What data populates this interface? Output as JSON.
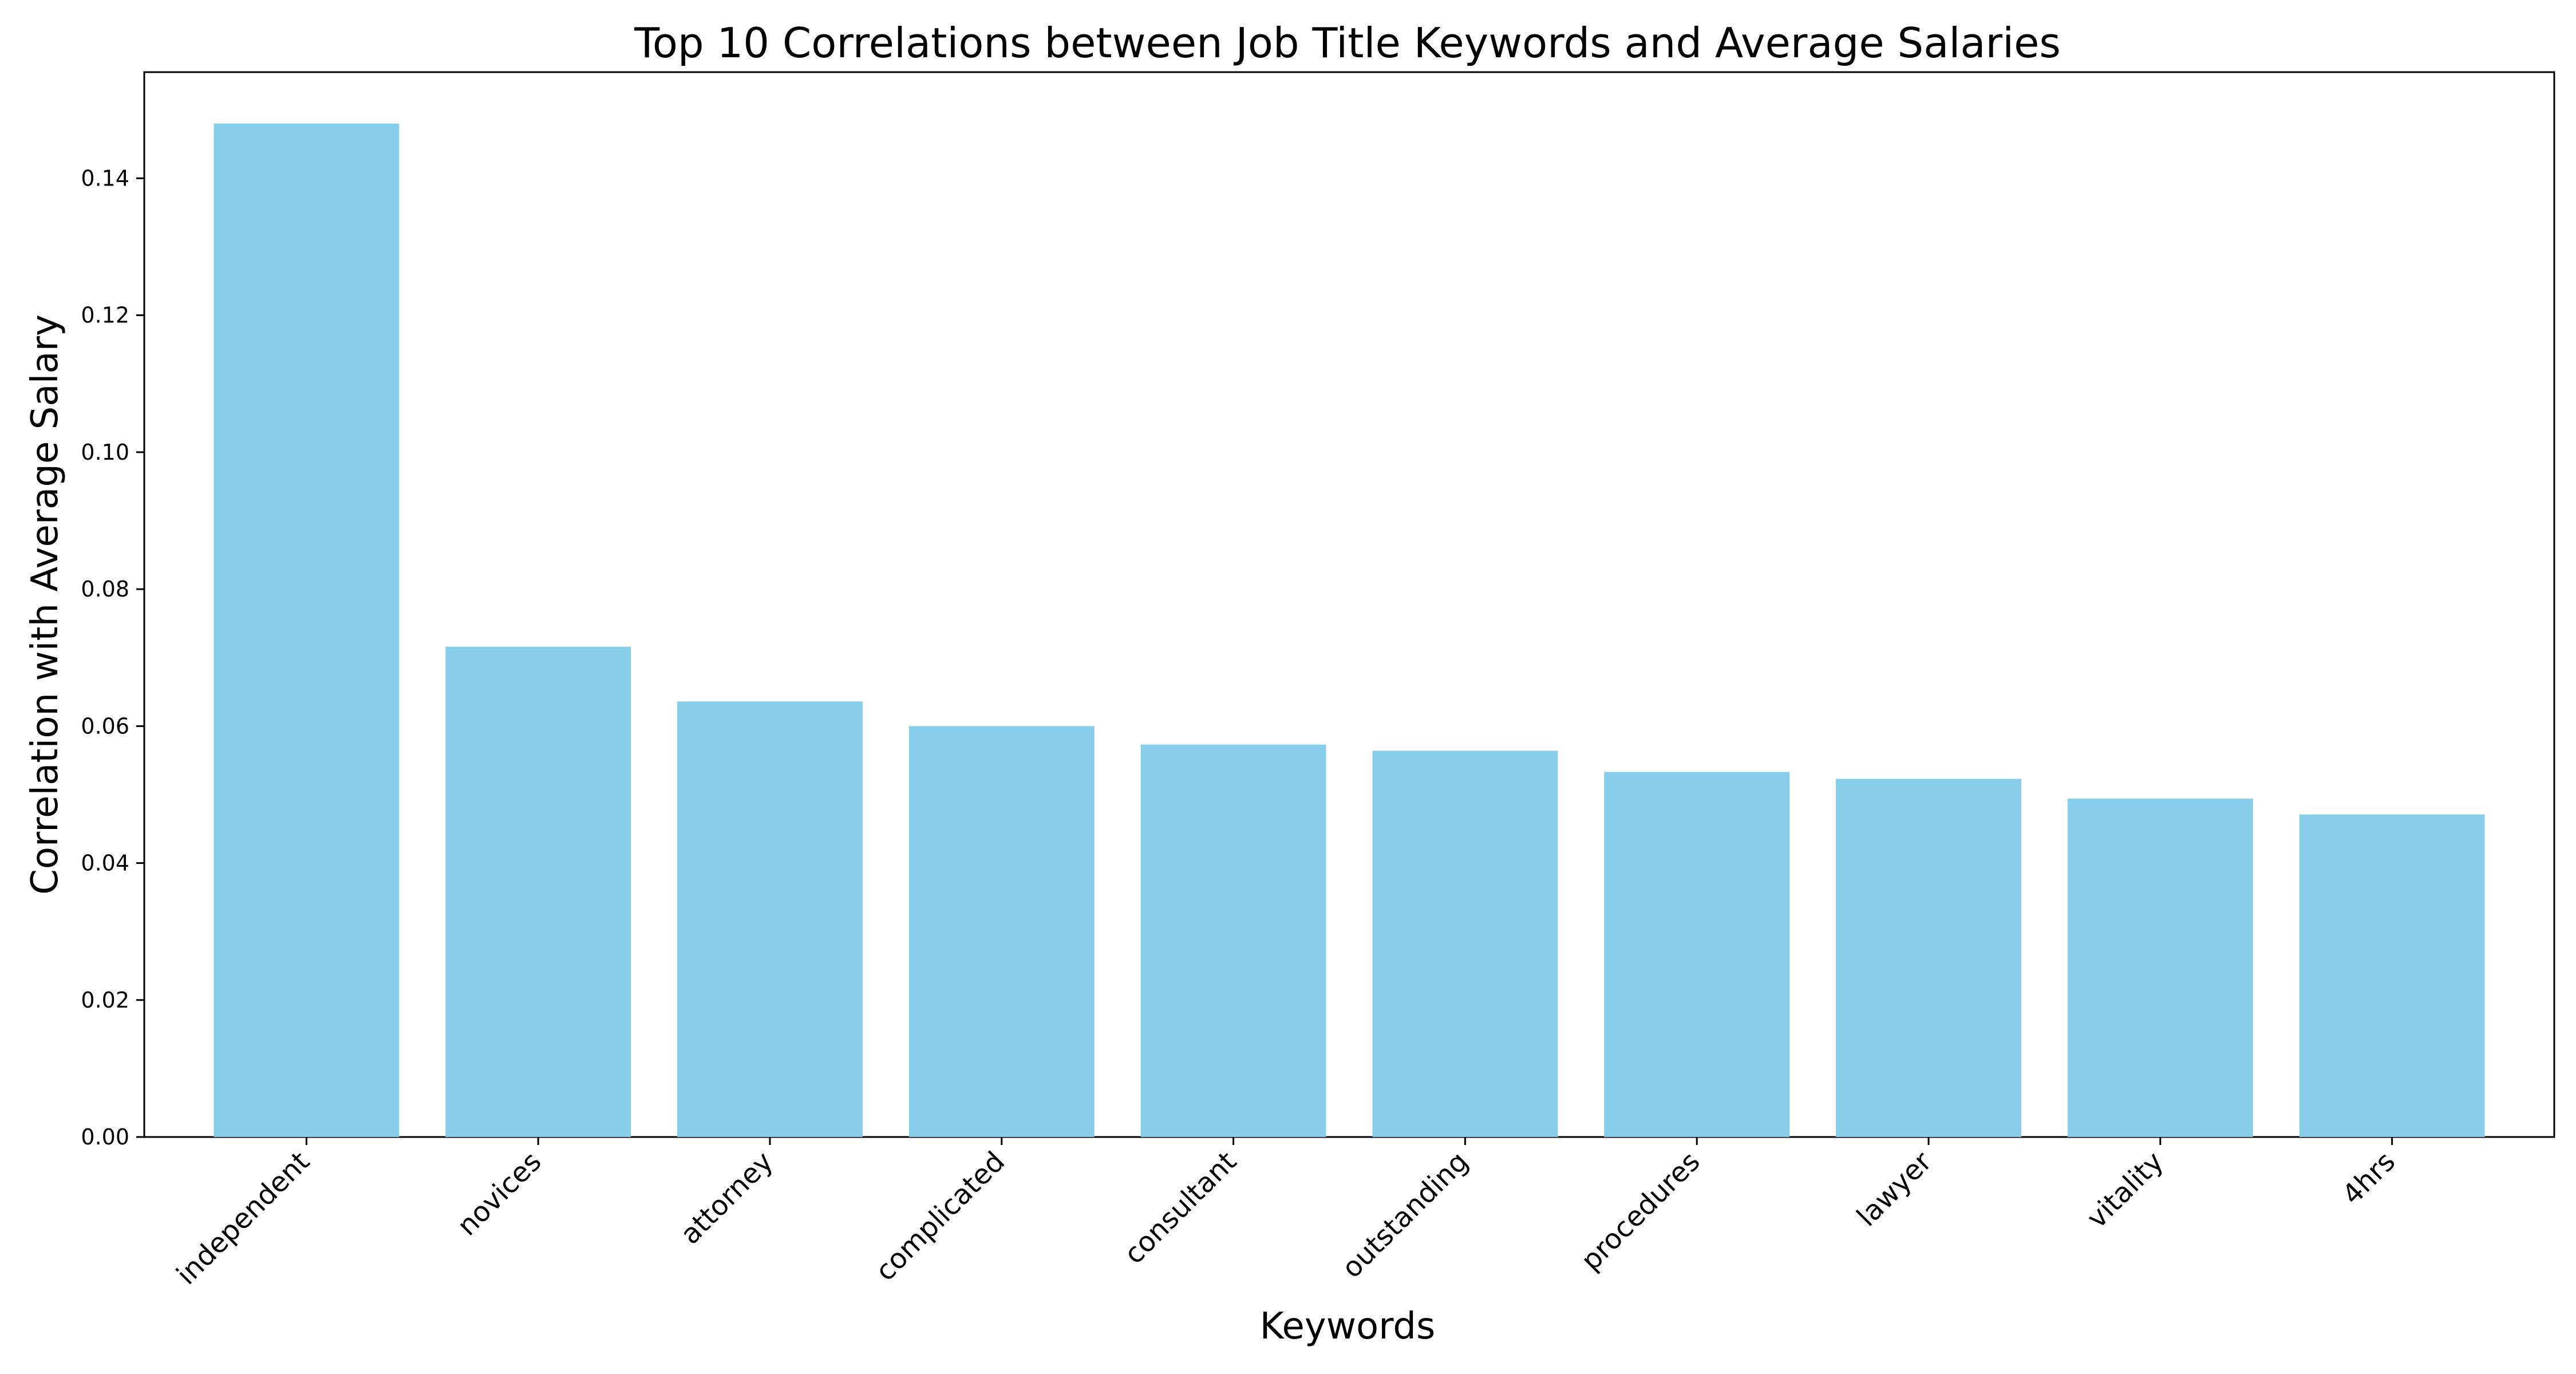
{
  "chart_data": {
    "type": "bar",
    "title": "Top 10 Correlations between Job Title Keywords and Average Salaries",
    "xlabel": "Keywords",
    "ylabel": "Correlation with Average Salary",
    "categories": [
      "independent",
      "novices",
      "attorney",
      "complicated",
      "consultant",
      "outstanding",
      "procedures",
      "lawyer",
      "vitality",
      "4hrs"
    ],
    "values": [
      0.148,
      0.0716,
      0.0636,
      0.06,
      0.0573,
      0.0564,
      0.0533,
      0.0523,
      0.0494,
      0.0471
    ],
    "ylim": [
      0,
      0.1555
    ],
    "yticks": [
      0.0,
      0.02,
      0.04,
      0.06,
      0.08,
      0.1,
      0.12,
      0.14
    ],
    "ytick_labels": [
      "0.00",
      "0.02",
      "0.04",
      "0.06",
      "0.08",
      "0.10",
      "0.12",
      "0.14"
    ],
    "grid": false,
    "bar_color": "#87ceeb"
  }
}
